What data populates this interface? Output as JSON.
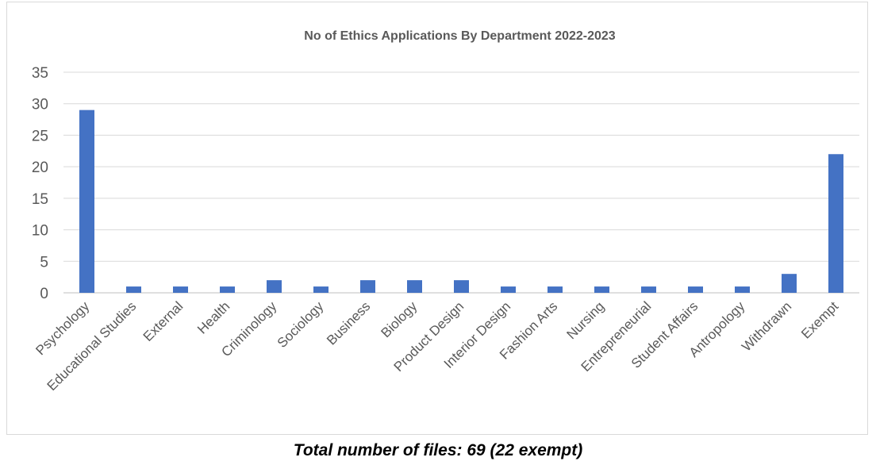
{
  "chart_data": {
    "type": "bar",
    "title": "No of Ethics Applications By Department 2022-2023",
    "xlabel": "",
    "ylabel": "",
    "ylim": [
      0,
      35
    ],
    "yticks": [
      0,
      5,
      10,
      15,
      20,
      25,
      30,
      35
    ],
    "grid": true,
    "legend": "none",
    "bar_color": "#4472c4",
    "categories": [
      "Psychology",
      "Educational Studies",
      "External",
      "Health",
      "Criminology",
      "Sociology",
      "Business",
      "Biology",
      "Product Design",
      "Interior Design",
      "Fashion Arts",
      "Nursing",
      "Entrepreneurial",
      "Student Affairs",
      "Antropology",
      "Withdrawn",
      "Exempt"
    ],
    "values": [
      29,
      1,
      1,
      1,
      2,
      1,
      2,
      2,
      2,
      1,
      1,
      1,
      1,
      1,
      1,
      3,
      22
    ]
  },
  "caption": "Total number of files: 69 (22 exempt)"
}
